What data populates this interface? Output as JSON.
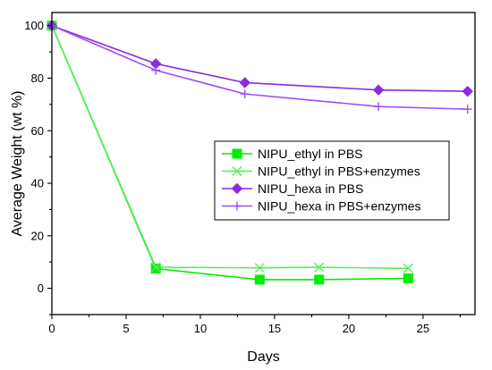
{
  "chart_data": {
    "type": "line",
    "title": "",
    "xlabel": "Days",
    "ylabel": "Average Weight (wt %)",
    "xlim": [
      0,
      28.5
    ],
    "ylim": [
      -10,
      105
    ],
    "xticks": [
      0,
      5,
      10,
      15,
      20,
      25
    ],
    "yticks": [
      0,
      20,
      40,
      60,
      80,
      100
    ],
    "grid": false,
    "legend_position": "center-right",
    "series": [
      {
        "name": "NIPU_ethyl in PBS",
        "marker": "square",
        "color": "#00ee00",
        "points": [
          [
            0,
            100
          ],
          [
            7,
            7.5
          ],
          [
            14,
            3.3
          ],
          [
            18,
            3.3
          ],
          [
            24,
            3.8
          ]
        ]
      },
      {
        "name": "NIPU_ethyl in PBS+enzymes",
        "marker": "x",
        "color": "#55ee55",
        "points": [
          [
            0,
            100
          ],
          [
            7,
            8.0
          ],
          [
            14,
            7.8
          ],
          [
            18,
            8.0
          ],
          [
            24,
            7.6
          ]
        ]
      },
      {
        "name": "NIPU_hexa in PBS",
        "marker": "diamond",
        "color": "#8a2be2",
        "points": [
          [
            0,
            100
          ],
          [
            7,
            85.5
          ],
          [
            13,
            78.3
          ],
          [
            22,
            75.5
          ],
          [
            28,
            75.0
          ]
        ]
      },
      {
        "name": "NIPU_hexa in PBS+enzymes",
        "marker": "plus",
        "color": "#9b4dff",
        "points": [
          [
            0,
            100
          ],
          [
            7,
            83.0
          ],
          [
            13,
            74.0
          ],
          [
            22,
            69.2
          ],
          [
            28,
            68.2
          ]
        ]
      }
    ]
  }
}
